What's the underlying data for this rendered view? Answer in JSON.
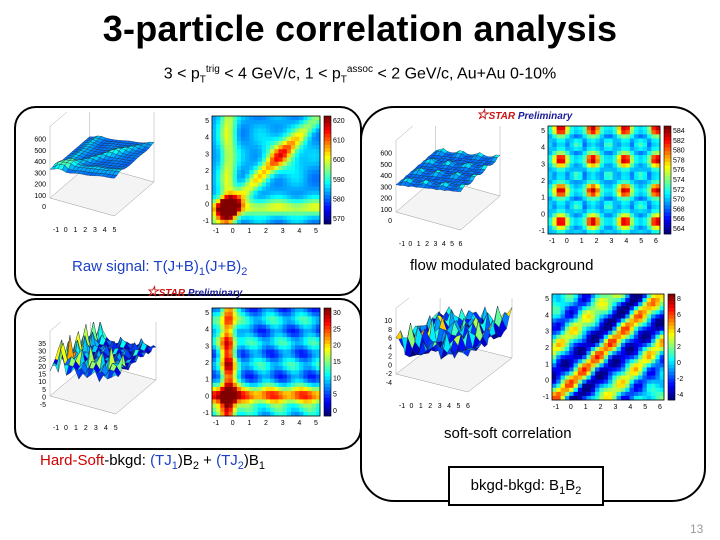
{
  "title": "3-particle correlation analysis",
  "subtitle": {
    "p1": "3 < p",
    "t1": "T",
    "trig": "trig",
    "p2": " < 4 GeV/c, 1 < p",
    "t2": "T",
    "assoc": "assoc",
    "p3": " < 2 GeV/c, Au+Au 0-10%"
  },
  "star_logo": {
    "star": "STAR",
    "prelim": " Preliminary"
  },
  "raw_signal": {
    "prefix": "Raw signal: T(J+B)",
    "sub1": "1",
    "mid": "(J+B)",
    "sub2": "2",
    "z_ticks": [
      "600",
      "500",
      "400",
      "300",
      "200",
      "100",
      "0"
    ],
    "map_y_ticks": [
      "5",
      "4",
      "3",
      "2",
      "1",
      "0",
      "-1"
    ],
    "map_x_ticks": [
      "-1",
      "0",
      "1",
      "2",
      "3",
      "4",
      "5"
    ],
    "legend_ticks": [
      "620",
      "610",
      "600",
      "590",
      "580",
      "570"
    ]
  },
  "flow_bg": {
    "label": "flow modulated background",
    "z_ticks": [
      "600",
      "500",
      "400",
      "300",
      "200",
      "100",
      "0"
    ],
    "map_y_ticks": [
      "5",
      "4",
      "3",
      "2",
      "1",
      "0",
      "-1"
    ],
    "map_x_ticks": [
      "-1",
      "0",
      "1",
      "2",
      "3",
      "4",
      "5",
      "6"
    ],
    "legend_ticks": [
      "584",
      "582",
      "580",
      "578",
      "576",
      "574",
      "572",
      "570",
      "568",
      "566",
      "564"
    ]
  },
  "hard_soft": {
    "p1": "Hard-Soft",
    "p2": "-bkgd: ",
    "p3": "(TJ",
    "s1": "1",
    "p4": ")B",
    "s2": "2",
    "p5": " + ",
    "p6": "(TJ",
    "s3": "2",
    "p7": ")B",
    "s4": "1",
    "z_ticks": [
      "35",
      "30",
      "25",
      "20",
      "15",
      "10",
      "5",
      "0",
      "-5"
    ],
    "map_y_ticks": [
      "5",
      "4",
      "3",
      "2",
      "1",
      "0",
      "-1"
    ],
    "map_x_ticks": [
      "-1",
      "0",
      "1",
      "2",
      "3",
      "4",
      "5"
    ],
    "legend_ticks": [
      "30",
      "25",
      "20",
      "15",
      "10",
      "5",
      "0"
    ]
  },
  "soft_soft": {
    "label": "soft-soft correlation",
    "z_ticks": [
      "10",
      "8",
      "6",
      "4",
      "2",
      "0",
      "-2",
      "-4"
    ],
    "map_y_ticks": [
      "5",
      "4",
      "3",
      "2",
      "1",
      "0",
      "-1"
    ],
    "map_x_ticks": [
      "-1",
      "0",
      "1",
      "2",
      "3",
      "4",
      "5",
      "6"
    ],
    "legend_ticks": [
      "8",
      "6",
      "4",
      "2",
      "0",
      "-2",
      "-4"
    ]
  },
  "bkgd_bkgd": {
    "p1": "bkgd-bkgd: B",
    "s1": "1",
    "p2": "B",
    "s2": "2"
  },
  "page_number": "13",
  "colors": {
    "hard_soft": "#cc0000",
    "tj": "#1b3fc8",
    "panel_border": "#000000"
  }
}
